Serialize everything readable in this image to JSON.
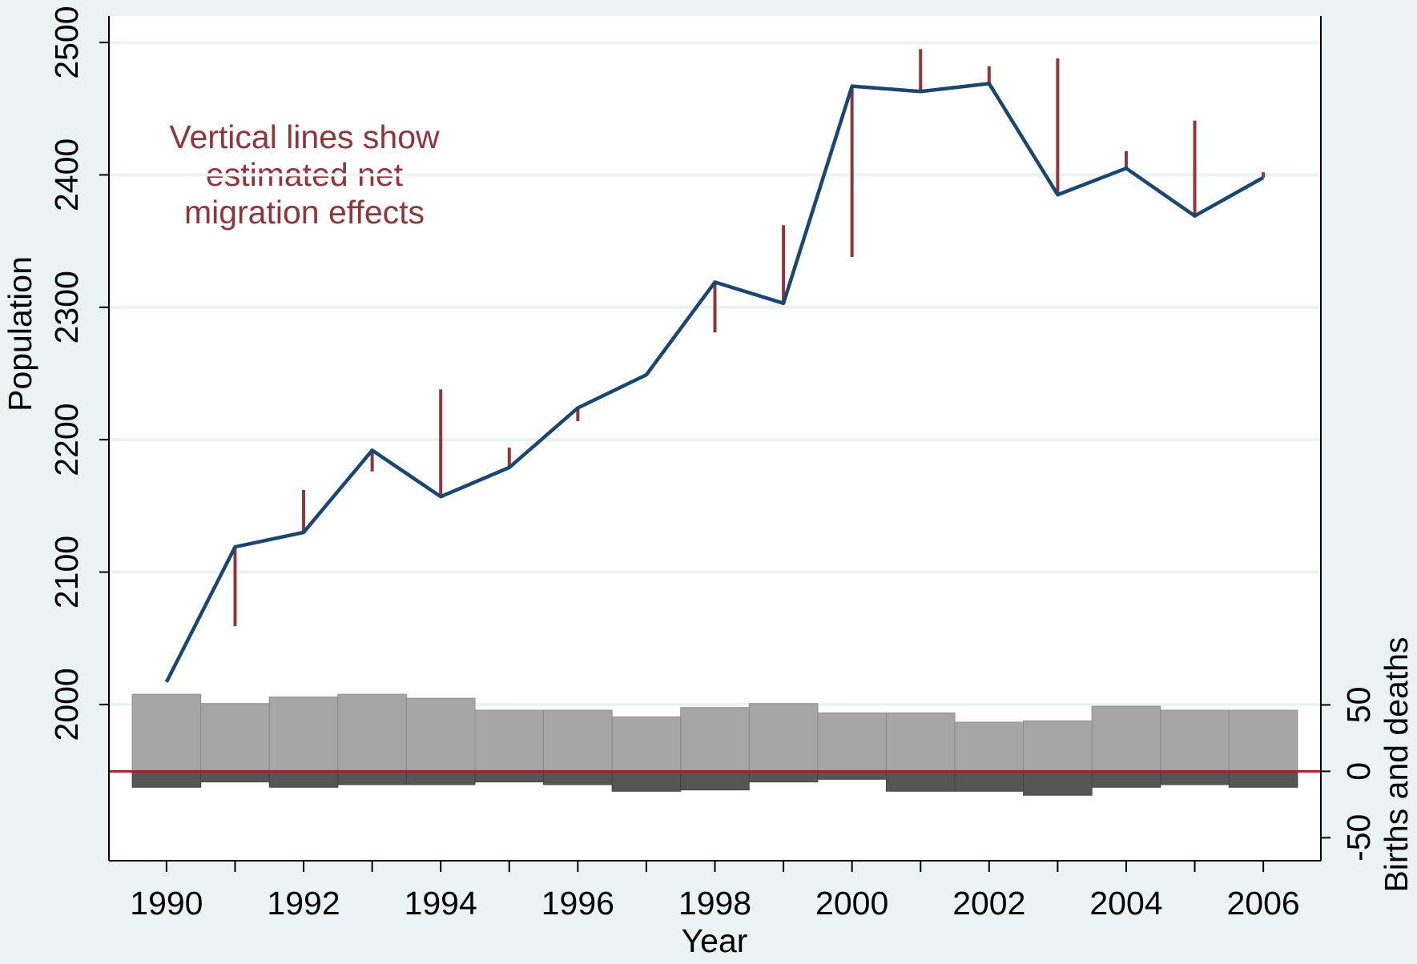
{
  "chart_data": {
    "type": "population-components",
    "x": [
      1990,
      1991,
      1992,
      1993,
      1994,
      1995,
      1996,
      1997,
      1998,
      1999,
      2000,
      2001,
      2002,
      2003,
      2004,
      2005,
      2006
    ],
    "population": {
      "color": "#1a476f",
      "values": [
        2017,
        2119,
        2130,
        2192,
        2157,
        2179,
        2224,
        2249,
        2319,
        2303,
        2467,
        2463,
        2469,
        2385,
        2405,
        2369,
        2398
      ]
    },
    "net_migration": {
      "color": "#90353b",
      "values": [
        null,
        60,
        -32,
        16,
        -81,
        -15,
        10,
        null,
        38,
        -59,
        129,
        -32,
        -13,
        -103,
        -13,
        -72,
        -4
      ]
    },
    "births": {
      "color": "#a6a6a6",
      "axis": "y2",
      "values": [
        58,
        51,
        56,
        58,
        55,
        46,
        46,
        41,
        48,
        51,
        44,
        44,
        37,
        38,
        49,
        46,
        46
      ]
    },
    "deaths": {
      "color": "#555555",
      "axis": "y2",
      "values": [
        -12,
        -8,
        -12,
        -10,
        -10,
        -8,
        -10,
        -15,
        -14,
        -8,
        -6,
        -15,
        -15,
        -18,
        -12,
        -10,
        -12
      ]
    },
    "zero_line_color": "#b2182b",
    "annotation": [
      "Vertical lines show",
      "estimated net",
      "migration effects"
    ],
    "xlabel": "Year",
    "ylabel": "Population",
    "y2label": "Births and deaths",
    "xlim": [
      1989.16,
      2006.84
    ],
    "xticks": [
      1990,
      1992,
      1994,
      1996,
      1998,
      2000,
      2002,
      2004,
      2006
    ],
    "xminor": [
      1991,
      1993,
      1995,
      1997,
      1999,
      2001,
      2003,
      2005
    ],
    "ylim": [
      1882,
      2520
    ],
    "yticks": [
      2000,
      2100,
      2200,
      2300,
      2400,
      2500
    ],
    "y2lim": [
      -67.3,
      568.7
    ],
    "y2ticks": [
      -50,
      0,
      50
    ],
    "grid": true
  }
}
